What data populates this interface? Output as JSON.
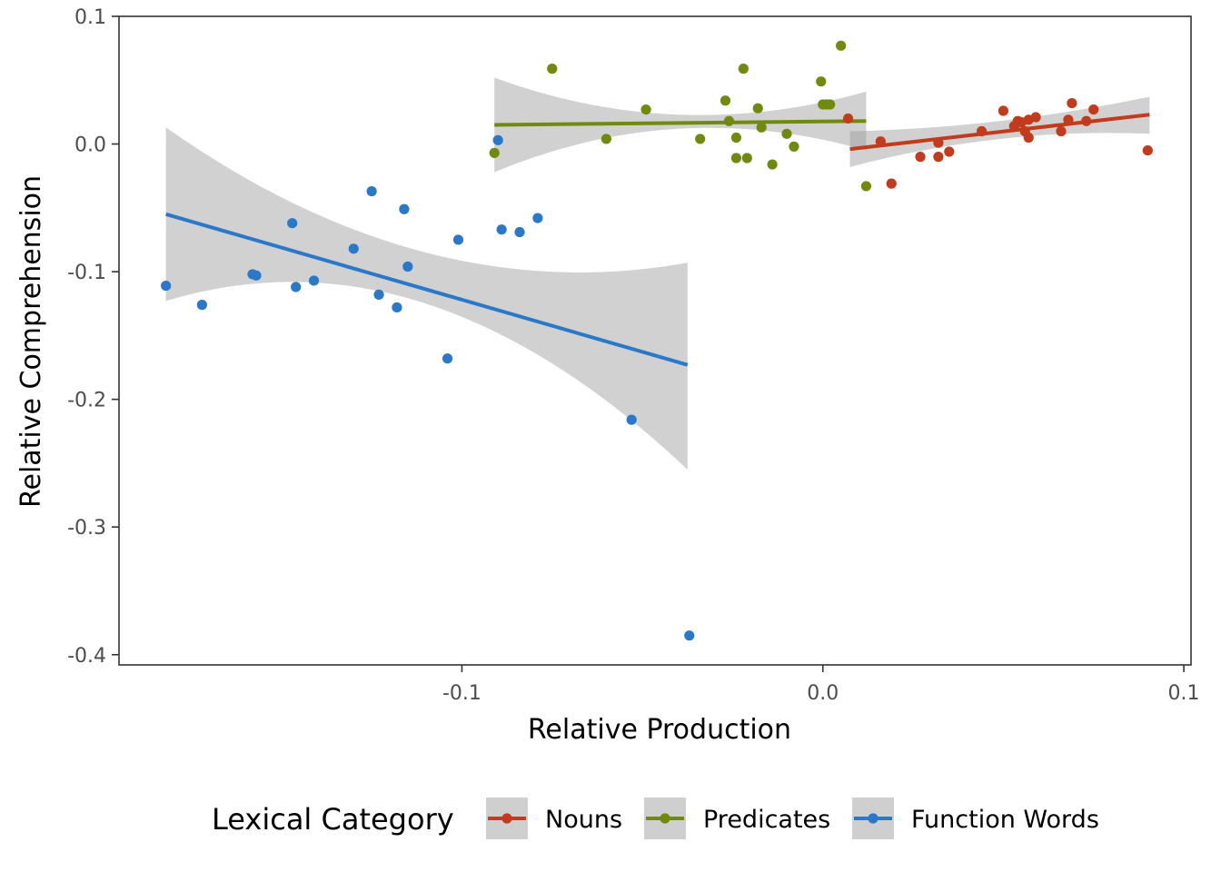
{
  "chart_data": {
    "type": "scatter",
    "xlabel": "Relative Production",
    "ylabel": "Relative Comprehension",
    "xlim": [
      -0.195,
      0.102
    ],
    "ylim": [
      -0.408,
      0.1
    ],
    "x_ticks": [
      -0.1,
      0.0,
      0.1
    ],
    "x_tick_labels": [
      "-0.1",
      "0.0",
      "0.1"
    ],
    "y_ticks": [
      0.1,
      0.0,
      -0.1,
      -0.2,
      -0.3,
      -0.4
    ],
    "y_tick_labels": [
      "0.1",
      "0.0",
      "-0.1",
      "-0.2",
      "-0.3",
      "-0.4"
    ],
    "grid": false,
    "legend": {
      "title": "Lexical Category",
      "position": "bottom"
    },
    "series": [
      {
        "name": "Nouns",
        "color": "#c23b1c",
        "points": [
          [
            0.007,
            0.02
          ],
          [
            0.016,
            0.002
          ],
          [
            0.019,
            -0.031
          ],
          [
            0.027,
            -0.01
          ],
          [
            0.032,
            -0.01
          ],
          [
            0.032,
            0.001
          ],
          [
            0.035,
            -0.006
          ],
          [
            0.044,
            0.01
          ],
          [
            0.05,
            0.026
          ],
          [
            0.053,
            0.014
          ],
          [
            0.054,
            0.018
          ],
          [
            0.055,
            0.017
          ],
          [
            0.056,
            0.01
          ],
          [
            0.057,
            0.019
          ],
          [
            0.057,
            0.005
          ],
          [
            0.059,
            0.021
          ],
          [
            0.066,
            0.01
          ],
          [
            0.068,
            0.019
          ],
          [
            0.069,
            0.032
          ],
          [
            0.073,
            0.018
          ],
          [
            0.075,
            0.027
          ],
          [
            0.09,
            -0.005
          ]
        ],
        "fit": {
          "x": [
            0.0075,
            0.0905
          ],
          "y": [
            -0.004,
            0.023
          ]
        },
        "band": {
          "x": [
            0.0075,
            0.049,
            0.0905
          ],
          "lower": [
            -0.018,
            0.004,
            0.008
          ],
          "upper": [
            0.01,
            0.018,
            0.037
          ]
        }
      },
      {
        "name": "Predicates",
        "color": "#6f8a0f",
        "points": [
          [
            -0.091,
            -0.007
          ],
          [
            -0.075,
            0.059
          ],
          [
            -0.06,
            0.004
          ],
          [
            -0.049,
            0.027
          ],
          [
            -0.034,
            0.004
          ],
          [
            -0.027,
            0.034
          ],
          [
            -0.026,
            0.018
          ],
          [
            -0.024,
            0.005
          ],
          [
            -0.024,
            -0.011
          ],
          [
            -0.022,
            0.059
          ],
          [
            -0.021,
            -0.011
          ],
          [
            -0.018,
            0.028
          ],
          [
            -0.017,
            0.013
          ],
          [
            -0.014,
            -0.016
          ],
          [
            -0.01,
            0.008
          ],
          [
            -0.008,
            -0.002
          ],
          [
            0.0,
            0.031
          ],
          [
            0.001,
            0.031
          ],
          [
            0.002,
            0.031
          ],
          [
            -0.0005,
            0.049
          ],
          [
            0.005,
            0.077
          ],
          [
            0.012,
            -0.033
          ]
        ],
        "fit": {
          "x": [
            -0.091,
            0.012
          ],
          "y": [
            0.015,
            0.018
          ]
        },
        "band": {
          "x": [
            -0.091,
            -0.04,
            0.012
          ],
          "lower": [
            -0.022,
            0.012,
            -0.005
          ],
          "upper": [
            0.052,
            0.023,
            0.041
          ]
        }
      },
      {
        "name": "Function Words",
        "color": "#2a78c8",
        "points": [
          [
            -0.182,
            -0.111
          ],
          [
            -0.172,
            -0.126
          ],
          [
            -0.158,
            -0.102
          ],
          [
            -0.157,
            -0.103
          ],
          [
            -0.147,
            -0.062
          ],
          [
            -0.146,
            -0.112
          ],
          [
            -0.141,
            -0.107
          ],
          [
            -0.13,
            -0.082
          ],
          [
            -0.125,
            -0.037
          ],
          [
            -0.123,
            -0.118
          ],
          [
            -0.118,
            -0.128
          ],
          [
            -0.116,
            -0.051
          ],
          [
            -0.115,
            -0.096
          ],
          [
            -0.104,
            -0.168
          ],
          [
            -0.101,
            -0.075
          ],
          [
            -0.09,
            0.003
          ],
          [
            -0.089,
            -0.067
          ],
          [
            -0.084,
            -0.069
          ],
          [
            -0.079,
            -0.058
          ],
          [
            -0.053,
            -0.216
          ],
          [
            -0.037,
            -0.385
          ]
        ],
        "fit": {
          "x": [
            -0.182,
            -0.0375
          ],
          "y": [
            -0.055,
            -0.173
          ]
        },
        "band": {
          "x": [
            -0.182,
            -0.11,
            -0.0375
          ],
          "lower": [
            -0.123,
            -0.125,
            -0.255
          ],
          "upper": [
            0.013,
            -0.085,
            -0.093
          ]
        }
      }
    ]
  }
}
